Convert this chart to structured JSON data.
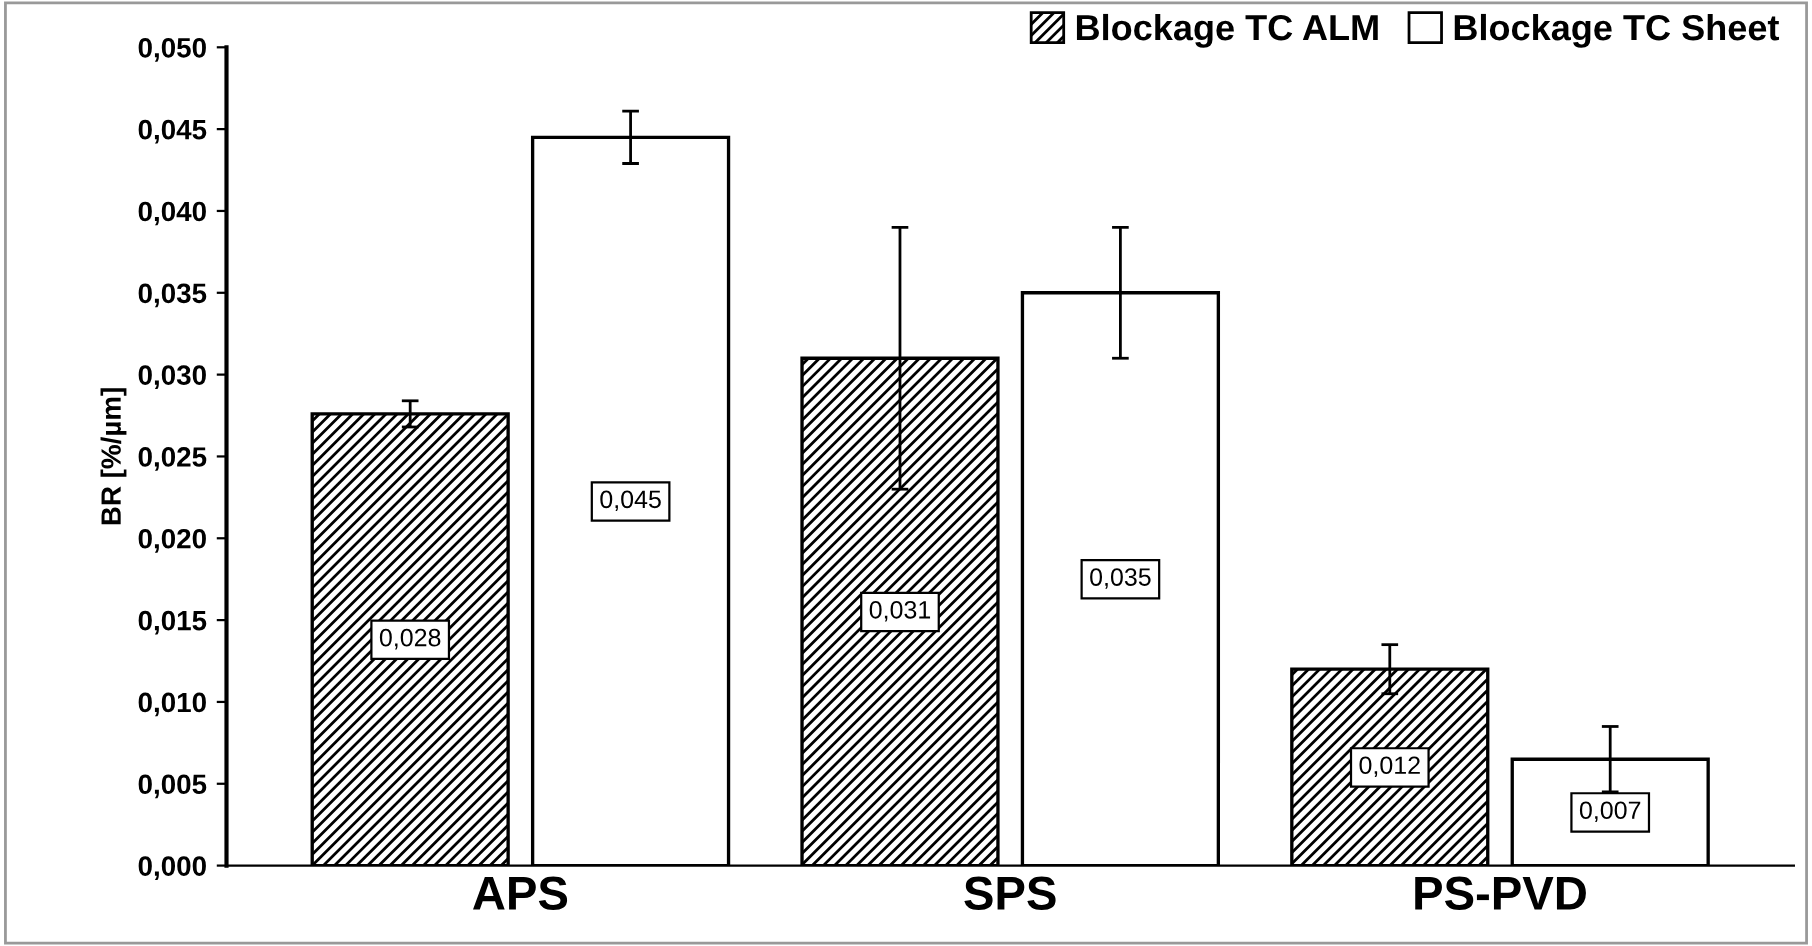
{
  "chart_data": {
    "type": "bar",
    "ylabel": "BR [%/µm]",
    "categories": [
      "APS",
      "SPS",
      "PS-PVD"
    ],
    "series": [
      {
        "name": "Blockage TC ALM",
        "color": "#000000",
        "values": [
          0.0276,
          0.031,
          0.012
        ],
        "errors": [
          0.0008,
          0.008,
          0.0015
        ],
        "value_labels": [
          "0,028",
          "0,031",
          "0,012"
        ]
      },
      {
        "name": "Blockage TC Sheet",
        "color": "#ffffff",
        "values": [
          0.0445,
          0.035,
          0.0065
        ],
        "errors": [
          0.0016,
          0.004,
          0.002
        ],
        "value_labels": [
          "0,045",
          "0,035",
          "0,007"
        ]
      }
    ],
    "ylim": [
      0,
      0.05
    ],
    "yticks": [
      {
        "value": 0,
        "label": "0,000"
      },
      {
        "value": 0.005,
        "label": "0,005"
      },
      {
        "value": 0.01,
        "label": "0,010"
      },
      {
        "value": 0.015,
        "label": "0,015"
      },
      {
        "value": 0.02,
        "label": "0,020"
      },
      {
        "value": 0.025,
        "label": "0,025"
      },
      {
        "value": 0.03,
        "label": "0,030"
      },
      {
        "value": 0.035,
        "label": "0,035"
      },
      {
        "value": 0.04,
        "label": "0,040"
      },
      {
        "value": 0.045,
        "label": "0,045"
      },
      {
        "value": 0.05,
        "label": "0,050"
      }
    ],
    "legend": "top right",
    "grid": false
  }
}
